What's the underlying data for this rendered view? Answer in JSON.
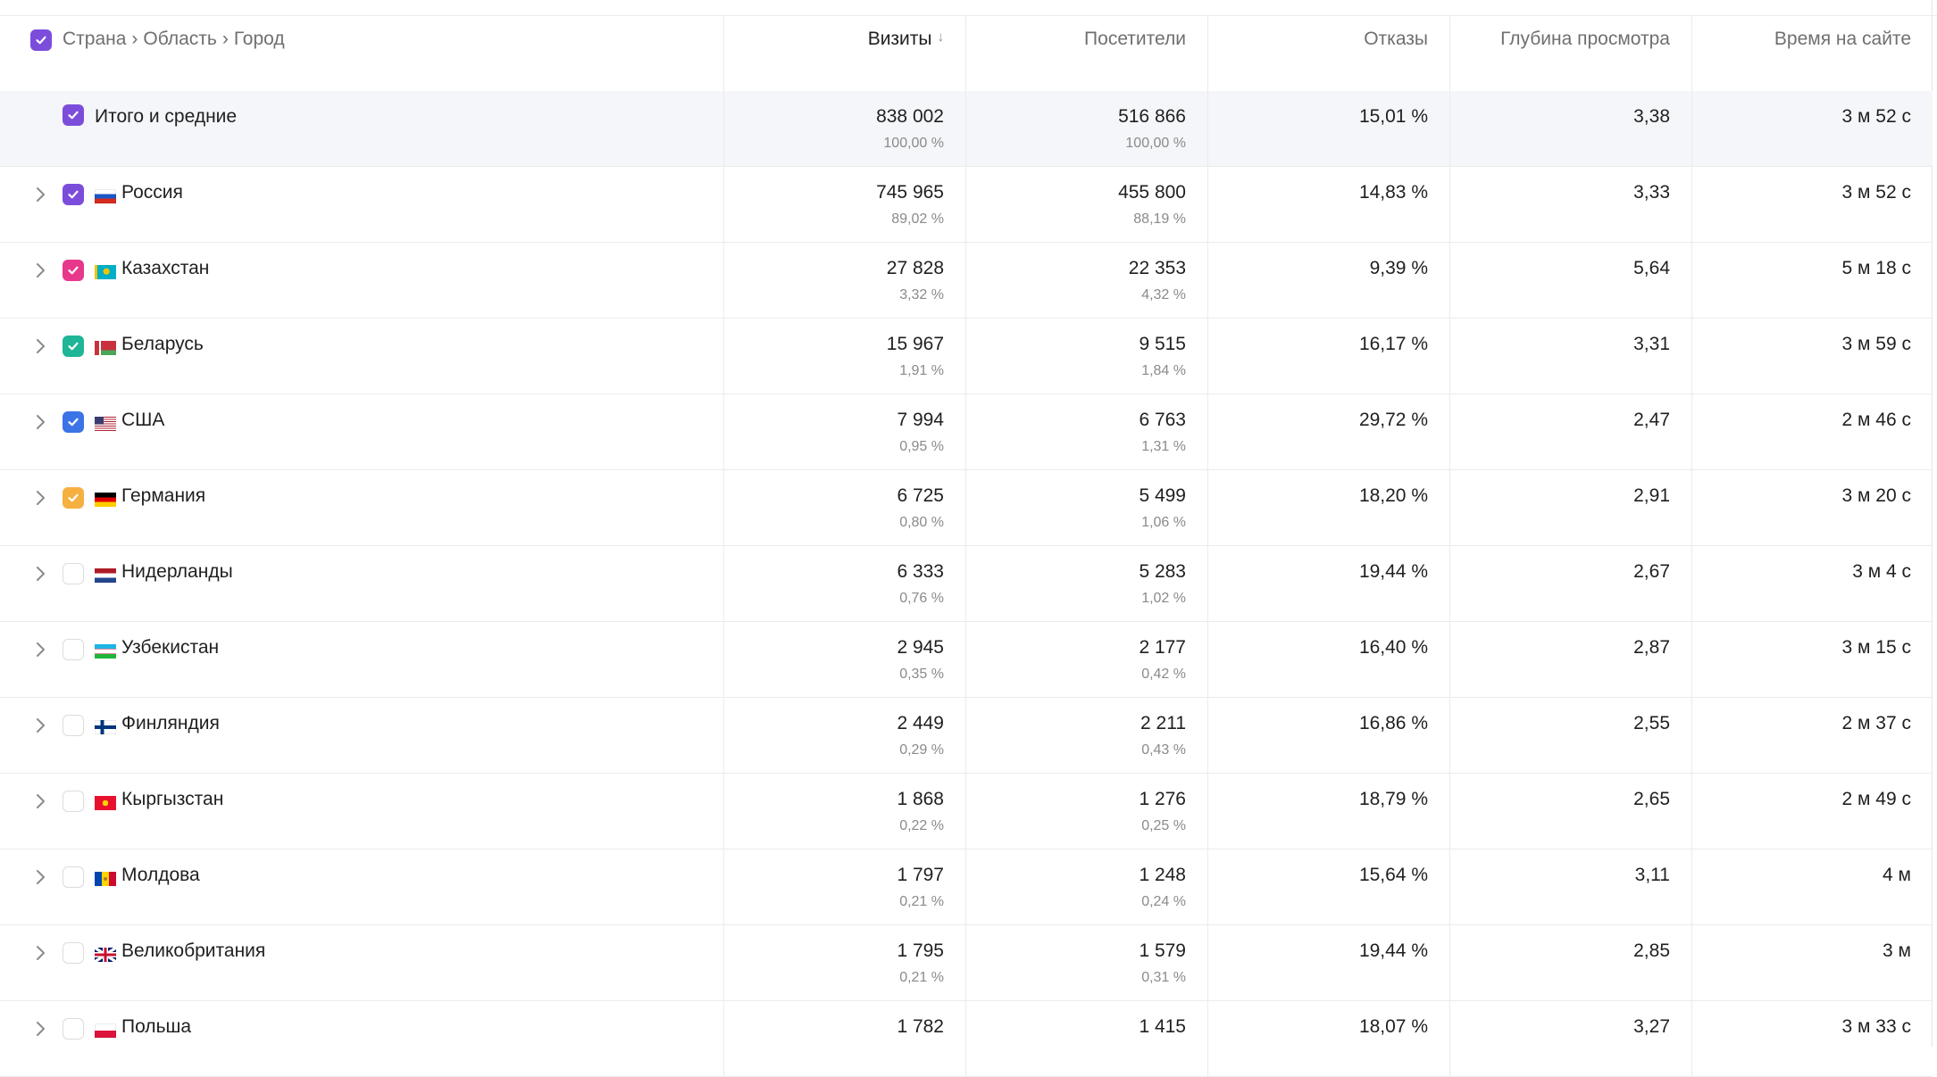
{
  "header": {
    "breadcrumb": [
      "Страна",
      "Область",
      "Город"
    ],
    "breadcrumb_separator": "›",
    "columns": [
      {
        "label": "Визиты",
        "sort_indicator": "↓"
      },
      {
        "label": "Посетители"
      },
      {
        "label": "Отказы"
      },
      {
        "label": "Глубина просмотра"
      },
      {
        "label": "Время на сайте"
      }
    ]
  },
  "colors": {
    "purple": "#7c4ddb",
    "pink": "#e8388c",
    "teal": "#1fb597",
    "blue": "#3b74e6",
    "orange": "#f5b041"
  },
  "total": {
    "label": "Итого и средние",
    "visits": "838 002",
    "visits_pct": "100,00 %",
    "visitors": "516 866",
    "visitors_pct": "100,00 %",
    "bounce": "15,01 %",
    "depth": "3,38",
    "time": "3 м 52 с"
  },
  "rows": [
    {
      "country": "Россия",
      "flag": "flag-russia-icon",
      "checked": true,
      "color": "#7c4ddb",
      "visits": "745 965",
      "visits_pct": "89,02 %",
      "visitors": "455 800",
      "visitors_pct": "88,19 %",
      "bounce": "14,83 %",
      "depth": "3,33",
      "time": "3 м 52 с"
    },
    {
      "country": "Казахстан",
      "flag": "flag-kazakhstan-icon",
      "checked": true,
      "color": "#e8388c",
      "visits": "27 828",
      "visits_pct": "3,32 %",
      "visitors": "22 353",
      "visitors_pct": "4,32 %",
      "bounce": "9,39 %",
      "depth": "5,64",
      "time": "5 м 18 с"
    },
    {
      "country": "Беларусь",
      "flag": "flag-belarus-icon",
      "checked": true,
      "color": "#1fb597",
      "visits": "15 967",
      "visits_pct": "1,91 %",
      "visitors": "9 515",
      "visitors_pct": "1,84 %",
      "bounce": "16,17 %",
      "depth": "3,31",
      "time": "3 м 59 с"
    },
    {
      "country": "США",
      "flag": "flag-usa-icon",
      "checked": true,
      "color": "#3b74e6",
      "visits": "7 994",
      "visits_pct": "0,95 %",
      "visitors": "6 763",
      "visitors_pct": "1,31 %",
      "bounce": "29,72 %",
      "depth": "2,47",
      "time": "2 м 46 с"
    },
    {
      "country": "Германия",
      "flag": "flag-germany-icon",
      "checked": true,
      "color": "#f5b041",
      "visits": "6 725",
      "visits_pct": "0,80 %",
      "visitors": "5 499",
      "visitors_pct": "1,06 %",
      "bounce": "18,20 %",
      "depth": "2,91",
      "time": "3 м 20 с"
    },
    {
      "country": "Нидерланды",
      "flag": "flag-netherlands-icon",
      "checked": false,
      "visits": "6 333",
      "visits_pct": "0,76 %",
      "visitors": "5 283",
      "visitors_pct": "1,02 %",
      "bounce": "19,44 %",
      "depth": "2,67",
      "time": "3 м 4 с"
    },
    {
      "country": "Узбекистан",
      "flag": "flag-uzbekistan-icon",
      "checked": false,
      "visits": "2 945",
      "visits_pct": "0,35 %",
      "visitors": "2 177",
      "visitors_pct": "0,42 %",
      "bounce": "16,40 %",
      "depth": "2,87",
      "time": "3 м 15 с"
    },
    {
      "country": "Финляндия",
      "flag": "flag-finland-icon",
      "checked": false,
      "visits": "2 449",
      "visits_pct": "0,29 %",
      "visitors": "2 211",
      "visitors_pct": "0,43 %",
      "bounce": "16,86 %",
      "depth": "2,55",
      "time": "2 м 37 с"
    },
    {
      "country": "Кыргызстан",
      "flag": "flag-kyrgyzstan-icon",
      "checked": false,
      "visits": "1 868",
      "visits_pct": "0,22 %",
      "visitors": "1 276",
      "visitors_pct": "0,25 %",
      "bounce": "18,79 %",
      "depth": "2,65",
      "time": "2 м 49 с"
    },
    {
      "country": "Молдова",
      "flag": "flag-moldova-icon",
      "checked": false,
      "visits": "1 797",
      "visits_pct": "0,21 %",
      "visitors": "1 248",
      "visitors_pct": "0,24 %",
      "bounce": "15,64 %",
      "depth": "3,11",
      "time": "4 м"
    },
    {
      "country": "Великобритания",
      "flag": "flag-uk-icon",
      "checked": false,
      "visits": "1 795",
      "visits_pct": "0,21 %",
      "visitors": "1 579",
      "visitors_pct": "0,31 %",
      "bounce": "19,44 %",
      "depth": "2,85",
      "time": "3 м"
    },
    {
      "country": "Польша",
      "flag": "flag-poland-icon",
      "checked": false,
      "visits": "1 782",
      "visits_pct": "",
      "visitors": "1 415",
      "visitors_pct": "",
      "bounce": "18,07 %",
      "depth": "3,27",
      "time": "3 м 33 с"
    }
  ]
}
